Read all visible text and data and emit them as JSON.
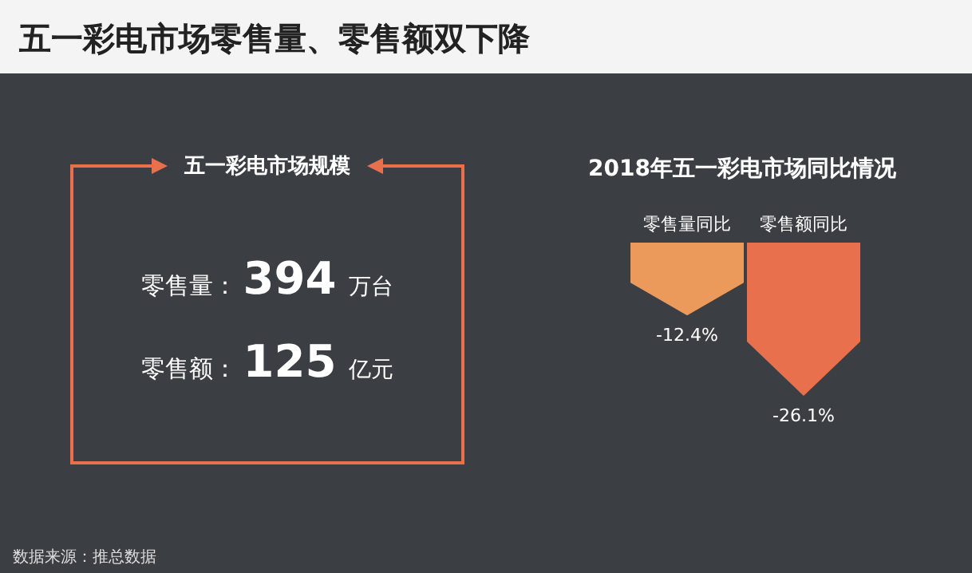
{
  "chart_data": [
    {
      "type": "other",
      "title": "五一彩电市场零售量、零售额双下降",
      "subtitle": "五一彩电市场规模",
      "annotations": [
        "零售量：394 万台",
        "零售额：125 亿元",
        "数据来源：推总数据"
      ]
    },
    {
      "type": "bar",
      "title": "2018年五一彩电市场同比情况",
      "categories": [
        "零售量同比",
        "零售额同比"
      ],
      "values": [
        -12.4,
        -26.1
      ],
      "colors": [
        "#eb9a5c",
        "#e8704c"
      ],
      "value_labels": [
        "-12.4%",
        "-26.1%"
      ]
    }
  ]
}
